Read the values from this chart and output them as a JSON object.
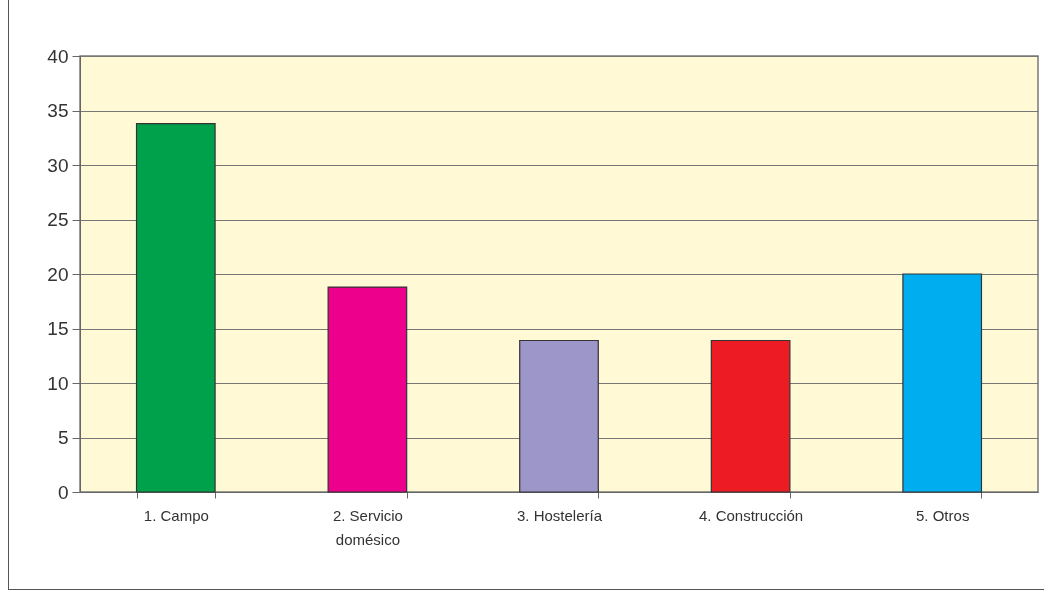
{
  "chart_data": {
    "type": "bar",
    "categories": [
      "1. Campo",
      "2. Servicio\ndomésico",
      "3. Hostelería",
      "4. Construcción",
      "5. Otros"
    ],
    "values": [
      33.8,
      18.8,
      13.9,
      13.9,
      20
    ],
    "colors": [
      "#00a14b",
      "#ec008c",
      "#9d96c9",
      "#ed1c24",
      "#00aeef"
    ],
    "ylim": [
      0,
      40
    ],
    "yticks": [
      0,
      5,
      10,
      15,
      20,
      25,
      30,
      35,
      40
    ],
    "grid": "y",
    "legend": false
  }
}
